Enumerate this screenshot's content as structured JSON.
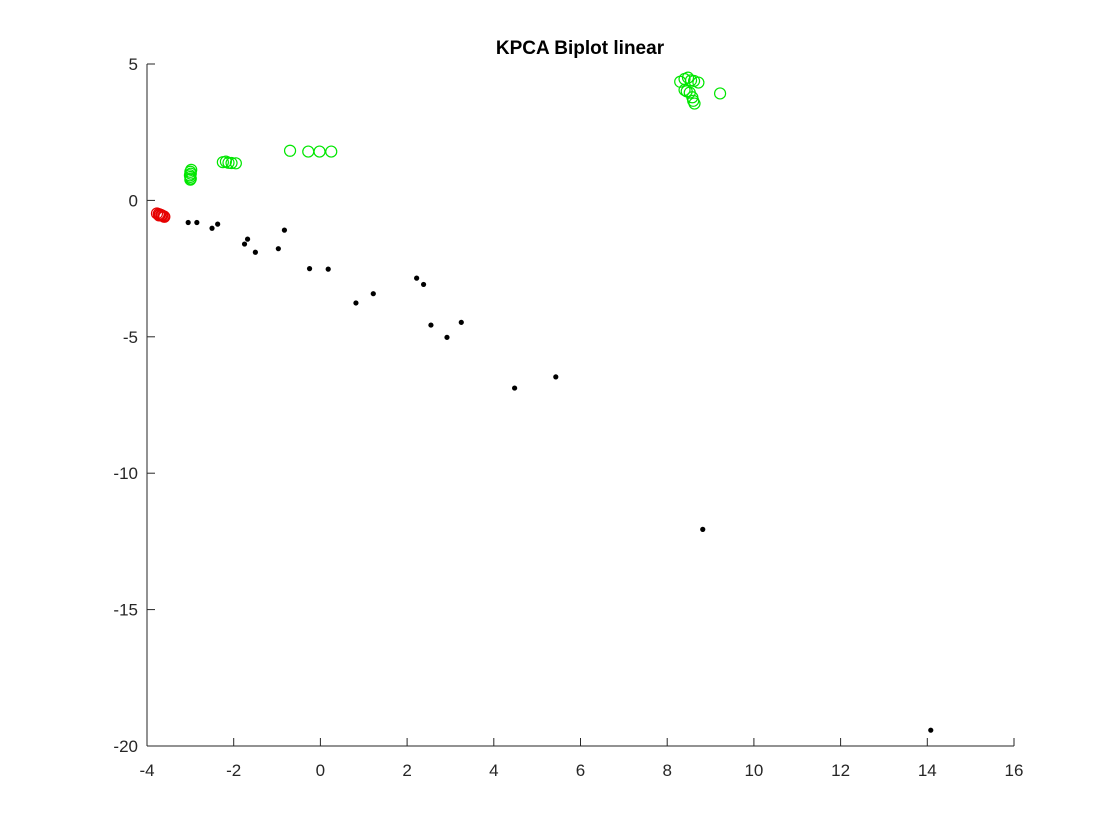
{
  "chart_data": {
    "type": "scatter",
    "title": "KPCA Biplot linear",
    "xlabel": "",
    "ylabel": "",
    "xlim": [
      -4,
      16
    ],
    "ylim": [
      -20,
      5
    ],
    "xticks": [
      -4,
      -2,
      0,
      2,
      4,
      6,
      8,
      10,
      12,
      14,
      16
    ],
    "yticks": [
      5,
      0,
      -5,
      -10,
      -15,
      -20
    ],
    "xtick_labels": [
      "-4",
      "-2",
      "0",
      "2",
      "4",
      "6",
      "8",
      "10",
      "12",
      "14",
      "16"
    ],
    "ytick_labels": [
      "5",
      "0",
      "-5",
      "-10",
      "-15",
      "-20"
    ],
    "grid": false,
    "legend": null,
    "series": [
      {
        "marker": "circle-open",
        "color": "#e60000",
        "points": [
          [
            -3.77,
            -0.48
          ],
          [
            -3.73,
            -0.5
          ],
          [
            -3.7,
            -0.52
          ],
          [
            -3.67,
            -0.54
          ],
          [
            -3.65,
            -0.56
          ],
          [
            -3.62,
            -0.58
          ],
          [
            -3.6,
            -0.6
          ],
          [
            -3.72,
            -0.55
          ]
        ]
      },
      {
        "marker": "circle-open",
        "color": "#00e600",
        "points": [
          [
            -3.0,
            1.05
          ],
          [
            -2.99,
            0.98
          ],
          [
            -3.01,
            0.92
          ],
          [
            -3.0,
            0.86
          ],
          [
            -2.99,
            0.8
          ],
          [
            -3.0,
            0.76
          ],
          [
            -2.98,
            1.12
          ],
          [
            -2.25,
            1.4
          ],
          [
            -2.18,
            1.42
          ],
          [
            -2.12,
            1.38
          ],
          [
            -2.05,
            1.37
          ],
          [
            -1.95,
            1.36
          ],
          [
            -0.7,
            1.82
          ],
          [
            -0.28,
            1.79
          ],
          [
            -0.02,
            1.79
          ],
          [
            0.25,
            1.79
          ],
          [
            8.3,
            4.35
          ],
          [
            8.4,
            4.45
          ],
          [
            8.48,
            4.5
          ],
          [
            8.55,
            4.4
          ],
          [
            8.62,
            4.38
          ],
          [
            8.72,
            4.32
          ],
          [
            8.4,
            4.05
          ],
          [
            8.45,
            4.0
          ],
          [
            8.52,
            3.95
          ],
          [
            8.58,
            3.78
          ],
          [
            8.6,
            3.65
          ],
          [
            8.63,
            3.55
          ],
          [
            9.22,
            3.92
          ]
        ]
      },
      {
        "marker": "dot",
        "color": "#000000",
        "points": [
          [
            -3.05,
            -0.81
          ],
          [
            -2.85,
            -0.81
          ],
          [
            -2.5,
            -1.02
          ],
          [
            -2.37,
            -0.87
          ],
          [
            -1.75,
            -1.6
          ],
          [
            -1.68,
            -1.42
          ],
          [
            -1.5,
            -1.9
          ],
          [
            -0.97,
            -1.77
          ],
          [
            -0.83,
            -1.09
          ],
          [
            -0.25,
            -2.5
          ],
          [
            0.18,
            -2.52
          ],
          [
            0.82,
            -3.76
          ],
          [
            1.22,
            -3.42
          ],
          [
            2.22,
            -2.85
          ],
          [
            2.38,
            -3.08
          ],
          [
            2.55,
            -4.57
          ],
          [
            2.92,
            -5.02
          ],
          [
            3.25,
            -4.47
          ],
          [
            4.48,
            -6.88
          ],
          [
            5.43,
            -6.47
          ],
          [
            8.82,
            -12.06
          ],
          [
            14.08,
            -19.42
          ]
        ]
      }
    ]
  }
}
